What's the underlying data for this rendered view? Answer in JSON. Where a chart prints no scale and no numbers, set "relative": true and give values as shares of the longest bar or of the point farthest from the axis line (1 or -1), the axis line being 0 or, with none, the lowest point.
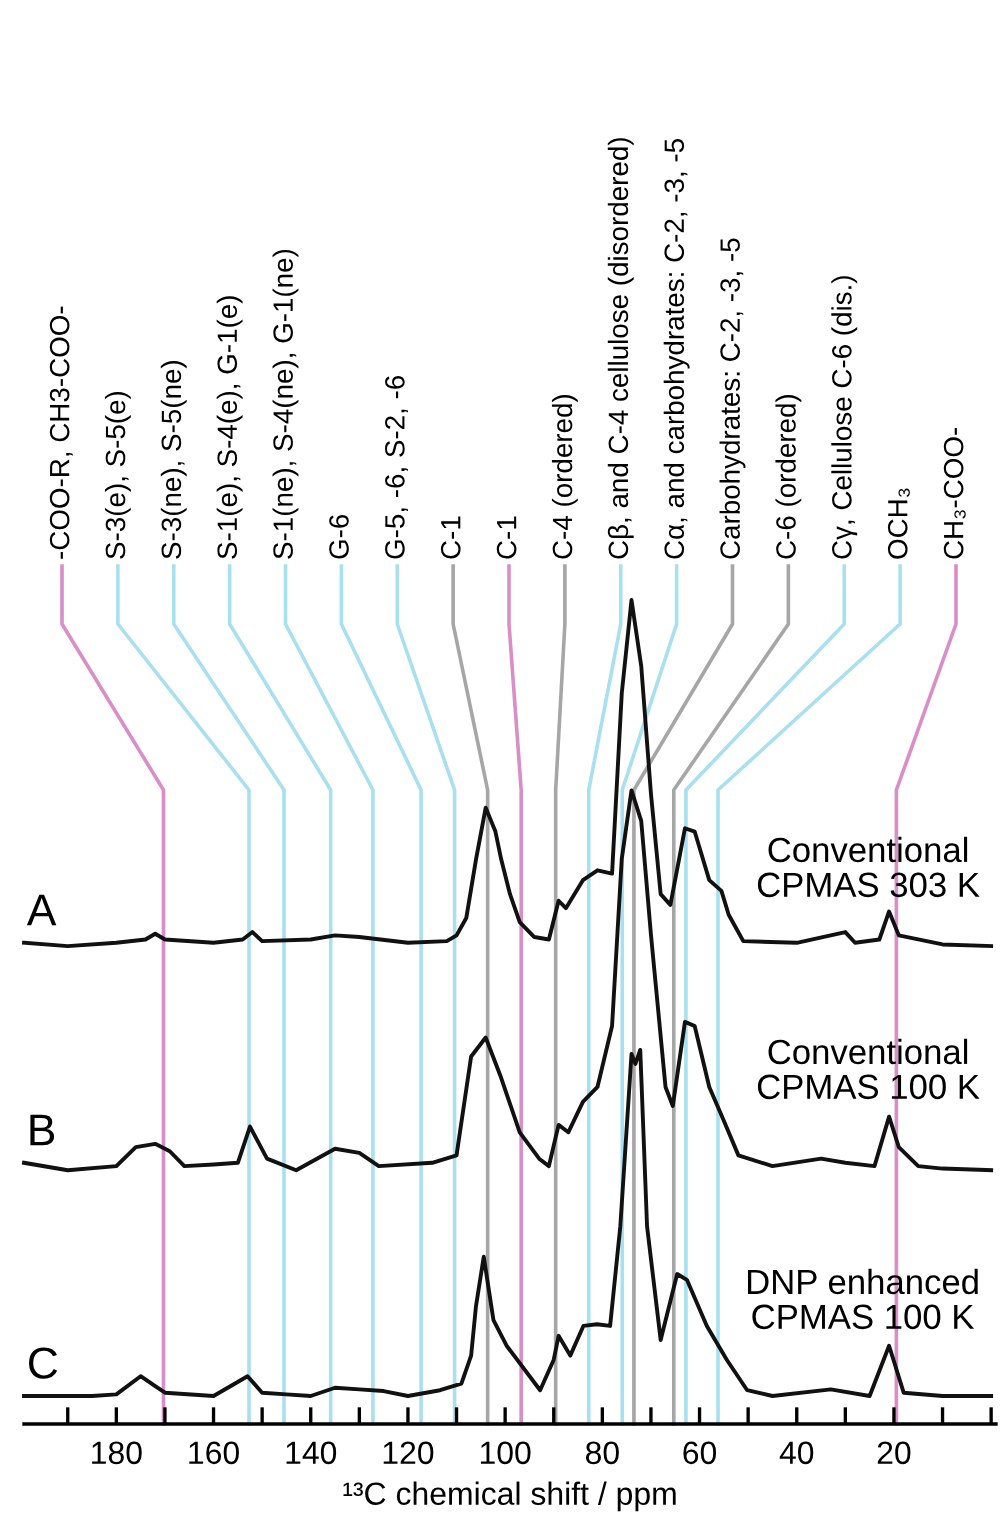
{
  "chart_data": {
    "type": "line",
    "relative": true,
    "xlim": [
      199,
      -1
    ],
    "xlabel": "¹³C chemical shift / ppm",
    "annotations": [
      "Conventional\nCPMAS 303 K",
      "Conventional\nCPMAS 100 K",
      "DNP enhanced\nCPMAS 100 K"
    ],
    "xticks": [
      {
        "value": 190,
        "label": null
      },
      180,
      {
        "value": 170,
        "label": null
      },
      160,
      {
        "value": 150,
        "label": null
      },
      140,
      {
        "value": 130,
        "label": null
      },
      120,
      {
        "value": 110,
        "label": null
      },
      100,
      {
        "value": 90,
        "label": null
      },
      80,
      {
        "value": 70,
        "label": null
      },
      60,
      {
        "value": 50,
        "label": null
      },
      40,
      {
        "value": 30,
        "label": null
      },
      20,
      {
        "value": 10,
        "label": null
      },
      {
        "value": 0,
        "label": null
      }
    ],
    "series": [
      {
        "name": "A",
        "color": "#111111",
        "x": [
          199,
          190,
          180,
          174,
          172,
          170,
          160,
          154,
          152,
          150,
          140,
          135,
          130,
          120,
          112,
          110,
          108,
          106,
          104,
          102,
          100.8,
          99,
          97,
          94,
          91,
          89,
          87.5,
          84,
          81,
          78,
          76,
          74,
          72,
          70,
          68,
          66,
          63,
          61,
          58,
          55.5,
          54,
          51,
          40,
          30,
          28,
          23,
          21,
          19,
          10,
          0
        ],
        "values": [
          0.584,
          0.58,
          0.584,
          0.588,
          0.595,
          0.588,
          0.584,
          0.588,
          0.597,
          0.586,
          0.588,
          0.593,
          0.591,
          0.584,
          0.586,
          0.593,
          0.614,
          0.685,
          0.748,
          0.719,
          0.685,
          0.643,
          0.609,
          0.591,
          0.588,
          0.635,
          0.626,
          0.66,
          0.672,
          0.668,
          0.887,
          1.0,
          0.92,
          0.765,
          0.643,
          0.63,
          0.723,
          0.719,
          0.66,
          0.647,
          0.618,
          0.586,
          0.584,
          0.597,
          0.584,
          0.588,
          0.622,
          0.593,
          0.582,
          0.58
        ]
      },
      {
        "name": "B",
        "color": "#111111",
        "x": [
          199,
          190,
          180,
          176,
          172,
          169,
          166,
          160,
          155,
          152.5,
          149,
          143,
          135,
          130,
          126,
          115,
          110,
          107,
          104,
          101,
          97,
          93,
          91,
          89,
          87,
          84,
          81,
          78,
          76,
          74,
          72,
          70,
          67,
          65.5,
          63,
          61,
          58,
          55,
          52,
          45,
          35,
          30,
          24,
          21,
          19,
          15,
          10,
          0
        ],
        "values": [
          0.317,
          0.308,
          0.313,
          0.336,
          0.34,
          0.331,
          0.313,
          0.315,
          0.317,
          0.361,
          0.322,
          0.308,
          0.334,
          0.329,
          0.313,
          0.317,
          0.326,
          0.446,
          0.469,
          0.423,
          0.354,
          0.322,
          0.313,
          0.363,
          0.354,
          0.391,
          0.409,
          0.483,
          0.686,
          0.769,
          0.732,
          0.594,
          0.409,
          0.386,
          0.488,
          0.483,
          0.409,
          0.368,
          0.326,
          0.313,
          0.322,
          0.317,
          0.313,
          0.373,
          0.336,
          0.313,
          0.31,
          0.308
        ]
      },
      {
        "name": "C",
        "color": "#111111",
        "x": [
          199,
          185,
          180,
          175,
          172,
          170,
          160,
          153,
          150,
          145,
          140,
          135,
          130,
          125,
          120,
          113.4,
          109,
          107,
          106,
          104.4,
          102.4,
          99.7,
          92.8,
          90,
          89,
          86.6,
          83.9,
          81.1,
          78.4,
          76.3,
          74,
          73.2,
          72.2,
          70.8,
          68,
          64.6,
          62.6,
          58.5,
          54.4,
          50.2,
          45,
          33,
          25,
          21,
          18,
          10,
          0
        ],
        "values": [
          0.034,
          0.034,
          0.036,
          0.058,
          0.046,
          0.038,
          0.034,
          0.058,
          0.038,
          0.036,
          0.034,
          0.044,
          0.042,
          0.04,
          0.034,
          0.041,
          0.049,
          0.083,
          0.143,
          0.203,
          0.126,
          0.095,
          0.041,
          0.078,
          0.107,
          0.083,
          0.119,
          0.121,
          0.119,
          0.24,
          0.449,
          0.437,
          0.454,
          0.24,
          0.102,
          0.182,
          0.175,
          0.119,
          0.078,
          0.041,
          0.034,
          0.042,
          0.034,
          0.095,
          0.038,
          0.034,
          0.034
        ]
      }
    ],
    "ref_lines": [
      {
        "axis": "x",
        "value": 170.3,
        "label": "-COO-R, CH3-COO-",
        "color": "#d98ec8"
      },
      {
        "axis": "x",
        "value": 152.7,
        "label": "S-3(e), S-5(e)",
        "color": "#a8e0f0"
      },
      {
        "axis": "x",
        "value": 145.5,
        "label": "S-3(ne), S-5(ne)",
        "color": "#a8e0f0"
      },
      {
        "axis": "x",
        "value": 135.9,
        "label": "S-1(e), S-4(e), G-1(e)",
        "color": "#a8e0f0"
      },
      {
        "axis": "x",
        "value": 127.2,
        "label": "S-1(ne), S-4(ne), G-1(ne)",
        "color": "#a8e0f0"
      },
      {
        "axis": "x",
        "value": 117.3,
        "label": "G-6",
        "color": "#a8e0f0"
      },
      {
        "axis": "x",
        "value": 110.4,
        "label": "G-5, -6, S-2, -6",
        "color": "#a8e0f0"
      },
      {
        "axis": "x",
        "value": 103.6,
        "label": "C-1",
        "color": "#a6a6a6"
      },
      {
        "axis": "x",
        "value": 96.7,
        "label": "C-1",
        "color": "#d98ec8"
      },
      {
        "axis": "x",
        "value": 89.6,
        "label": "C-4 (ordered)",
        "color": "#a6a6a6"
      },
      {
        "axis": "x",
        "value": 82.8,
        "label": "Cβ, and C-4 cellulose (disordered)",
        "color": "#a8e0f0"
      },
      {
        "axis": "x",
        "value": 75.9,
        "label": "Cα, and carbohydrates: C-2, -3, -5",
        "color": "#a8e0f0"
      },
      {
        "axis": "x",
        "value": 73.5,
        "label": "Carbohydrates: C-2, -3, -5",
        "color": "#a6a6a6"
      },
      {
        "axis": "x",
        "value": 65.3,
        "label": "C-6 (ordered)",
        "color": "#a6a6a6"
      },
      {
        "axis": "x",
        "value": 62.8,
        "label": "Cγ, Cellulose C-6 (dis.)",
        "color": "#a8e0f0"
      },
      {
        "axis": "x",
        "value": 56.2,
        "label": "OCH₃",
        "color": "#a8e0f0"
      },
      {
        "axis": "x",
        "value": 19.5,
        "label": "CH₃-COO-",
        "color": "#d98ec8"
      }
    ]
  }
}
